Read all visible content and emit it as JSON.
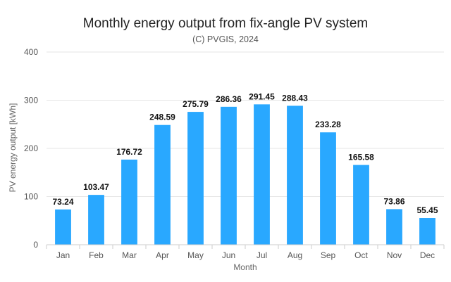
{
  "chart_data": {
    "type": "bar",
    "title": "Monthly energy output from fix-angle PV system",
    "subtitle": "(C) PVGIS, 2024",
    "xlabel": "Month",
    "ylabel": "PV energy output [kWh]",
    "categories": [
      "Jan",
      "Feb",
      "Mar",
      "Apr",
      "May",
      "Jun",
      "Jul",
      "Aug",
      "Sep",
      "Oct",
      "Nov",
      "Dec"
    ],
    "values": [
      73.24,
      103.47,
      176.72,
      248.59,
      275.79,
      286.36,
      291.45,
      288.43,
      233.28,
      165.58,
      73.86,
      55.45
    ],
    "data_labels": [
      "73.24",
      "103.47",
      "176.72",
      "248.59",
      "275.79",
      "286.36",
      "291.45",
      "288.43",
      "233.28",
      "165.58",
      "73.86",
      "55.45"
    ],
    "ylim": [
      0,
      400
    ],
    "yticks": [
      0,
      100,
      200,
      300,
      400
    ],
    "ytick_labels": [
      "0",
      "100",
      "200",
      "300",
      "400"
    ],
    "grid": true,
    "legend": "none",
    "colors": {
      "bar": "#29a8ff",
      "grid": "#e6e6e6",
      "axis": "#cccccc"
    }
  }
}
